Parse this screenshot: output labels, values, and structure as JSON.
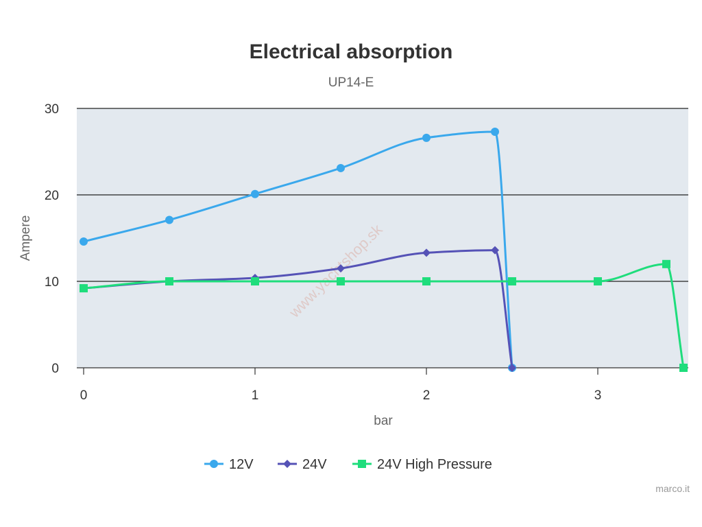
{
  "chart_data": {
    "type": "line",
    "title": "Electrical absorption",
    "subtitle": "UP14-E",
    "xlabel": "bar",
    "ylabel": "Ampere",
    "xlim": [
      0,
      3.5
    ],
    "ylim": [
      0,
      30
    ],
    "x_ticks": [
      "0",
      "1",
      "2",
      "3"
    ],
    "y_ticks": [
      "0",
      "10",
      "20",
      "30"
    ],
    "grid": true,
    "legend_position": "bottom-center",
    "plot_background": "#e3e9ef",
    "series": [
      {
        "name": "12V",
        "color": "#3aa8ec",
        "marker": "circle",
        "points": [
          [
            0,
            14.6
          ],
          [
            0.5,
            17.1
          ],
          [
            1,
            20.1
          ],
          [
            1.5,
            23.1
          ],
          [
            2,
            26.6
          ],
          [
            2.4,
            27.3
          ],
          [
            2.5,
            0
          ]
        ]
      },
      {
        "name": "24V",
        "color": "#5552b6",
        "marker": "diamond",
        "points": [
          [
            0,
            9.2
          ],
          [
            0.5,
            10.0
          ],
          [
            1,
            10.4
          ],
          [
            1.5,
            11.5
          ],
          [
            2,
            13.3
          ],
          [
            2.4,
            13.6
          ],
          [
            2.5,
            0
          ]
        ]
      },
      {
        "name": "24V High Pressure",
        "color": "#1fdd7c",
        "marker": "square",
        "points": [
          [
            0,
            9.2
          ],
          [
            0.5,
            10.0
          ],
          [
            1,
            10.0
          ],
          [
            1.5,
            10.0
          ],
          [
            2,
            10.0
          ],
          [
            2.5,
            10.0
          ],
          [
            3,
            10.0
          ],
          [
            3.4,
            12.0
          ],
          [
            3.5,
            0
          ]
        ]
      }
    ]
  },
  "watermark": "www.yachtshop.sk",
  "credit": "marco.it"
}
